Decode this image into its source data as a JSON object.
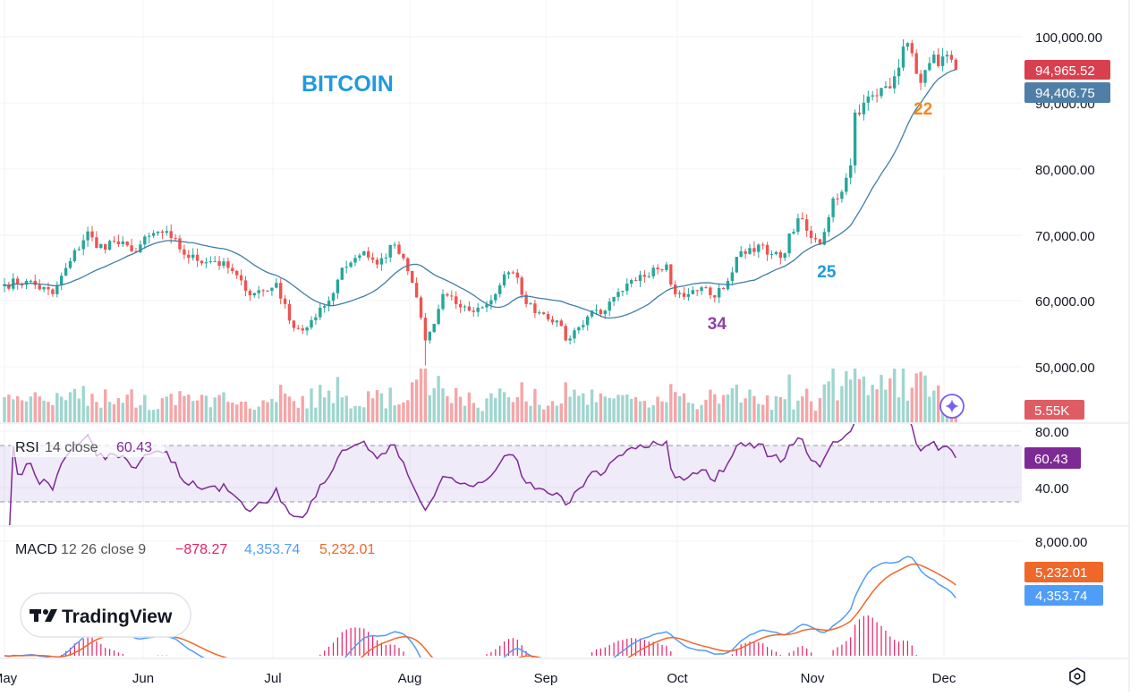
{
  "chart_data": {
    "type": "candlestick",
    "title": "BITCOIN",
    "x_tick_labels": [
      "May",
      "Jun",
      "Jul",
      "Aug",
      "Sep",
      "Oct",
      "Nov",
      "Dec"
    ],
    "x_start_day": "May 1",
    "days": 218,
    "price_axis": {
      "ticks": [
        "100,000.00",
        "90,000.00",
        "80,000.00",
        "70,000.00",
        "60,000.00",
        "50,000.00"
      ],
      "ylim": [
        44000,
        104000
      ]
    },
    "close_anchors": [
      [
        0,
        62500
      ],
      [
        5,
        63000
      ],
      [
        11,
        61000
      ],
      [
        15,
        66000
      ],
      [
        19,
        70500
      ],
      [
        21,
        68000
      ],
      [
        25,
        69000
      ],
      [
        29,
        67500
      ],
      [
        35,
        70500
      ],
      [
        38,
        69500
      ],
      [
        42,
        66500
      ],
      [
        48,
        66000
      ],
      [
        52,
        64500
      ],
      [
        55,
        61500
      ],
      [
        60,
        61500
      ],
      [
        62,
        62700
      ],
      [
        65,
        57000
      ],
      [
        68,
        55500
      ],
      [
        71,
        57500
      ],
      [
        74,
        60000
      ],
      [
        77,
        65000
      ],
      [
        80,
        66500
      ],
      [
        82,
        67500
      ],
      [
        85,
        65500
      ],
      [
        89,
        68500
      ],
      [
        92,
        64500
      ],
      [
        94,
        60500
      ],
      [
        96,
        54000
      ],
      [
        98,
        56500
      ],
      [
        100,
        61000
      ],
      [
        103,
        59500
      ],
      [
        106,
        58500
      ],
      [
        109,
        59000
      ],
      [
        112,
        61000
      ],
      [
        114,
        64000
      ],
      [
        117,
        63500
      ],
      [
        119,
        59500
      ],
      [
        123,
        58000
      ],
      [
        126,
        57000
      ],
      [
        128,
        54000
      ],
      [
        131,
        56000
      ],
      [
        134,
        58500
      ],
      [
        137,
        58500
      ],
      [
        141,
        61500
      ],
      [
        144,
        63000
      ],
      [
        148,
        65000
      ],
      [
        151,
        65500
      ],
      [
        153,
        61000
      ],
      [
        156,
        61000
      ],
      [
        160,
        62000
      ],
      [
        162,
        60500
      ],
      [
        165,
        63000
      ],
      [
        168,
        67500
      ],
      [
        172,
        68500
      ],
      [
        174,
        67000
      ],
      [
        177,
        66500
      ],
      [
        181,
        72500
      ],
      [
        184,
        69500
      ],
      [
        186,
        68500
      ],
      [
        189,
        75500
      ],
      [
        191,
        76500
      ],
      [
        193,
        80500
      ],
      [
        194,
        88500
      ],
      [
        196,
        90000
      ],
      [
        199,
        91000
      ],
      [
        203,
        94000
      ],
      [
        205,
        98500
      ],
      [
        207,
        97500
      ],
      [
        209,
        93000
      ],
      [
        211,
        96000
      ],
      [
        214,
        97000
      ],
      [
        217,
        94965.52
      ]
    ],
    "moving_average": {
      "value": "94,406.75",
      "color": "#3f7ea8"
    },
    "last_price": {
      "value": "94,965.52",
      "color": "#d9404f"
    },
    "volume": {
      "last": "5.55K",
      "color": "#e05c63"
    },
    "annotations": [
      {
        "text": "22",
        "color": "#f7861c",
        "day": 209
      },
      {
        "text": "25",
        "color": "#1f9ae0",
        "day": 187
      },
      {
        "text": "34",
        "color": "#8e3fa6",
        "day": 162
      }
    ],
    "rsi": {
      "label": "RSI",
      "params": "14 close",
      "value": "60.43",
      "ticks": [
        "80.00",
        "40.00"
      ],
      "band": [
        30,
        70
      ],
      "color": "#7e2a95"
    },
    "macd": {
      "label": "MACD",
      "params": "12 26 close 9",
      "histogram": "−878.27",
      "macd": "4,353.74",
      "signal": "5,232.01",
      "tick": "8,000.00",
      "colors": {
        "histogram": "#e91e63",
        "macd": "#4f9df7",
        "signal": "#f0672a"
      }
    }
  },
  "logo": {
    "text": "TradingView",
    "mark": "TV"
  },
  "icons": {
    "assistant": "sparkle-icon",
    "settings": "settings-icon"
  }
}
